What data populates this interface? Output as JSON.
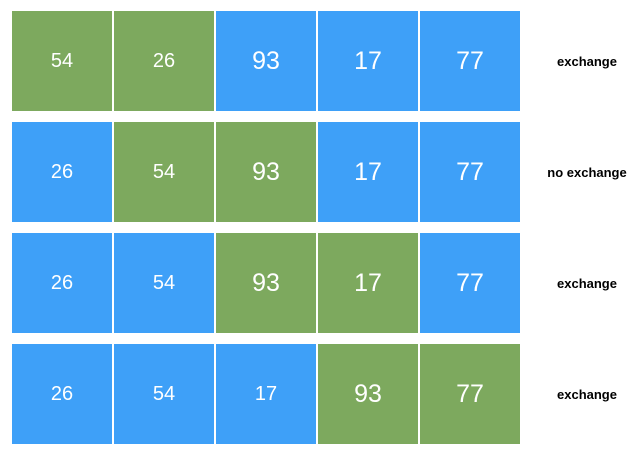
{
  "colors": {
    "compared": "#7da95e",
    "default": "#3ea0f8",
    "number_text": "#ffffff",
    "status_text": "#000000"
  },
  "rows": [
    {
      "cells": [
        {
          "value": "54",
          "state": "compared"
        },
        {
          "value": "26",
          "state": "compared"
        },
        {
          "value": "93",
          "state": "default"
        },
        {
          "value": "17",
          "state": "default"
        },
        {
          "value": "77",
          "state": "default"
        }
      ],
      "status": "exchange"
    },
    {
      "cells": [
        {
          "value": "26",
          "state": "default"
        },
        {
          "value": "54",
          "state": "compared"
        },
        {
          "value": "93",
          "state": "compared"
        },
        {
          "value": "17",
          "state": "default"
        },
        {
          "value": "77",
          "state": "default"
        }
      ],
      "status": "no exchange"
    },
    {
      "cells": [
        {
          "value": "26",
          "state": "default"
        },
        {
          "value": "54",
          "state": "default"
        },
        {
          "value": "93",
          "state": "compared"
        },
        {
          "value": "17",
          "state": "compared"
        },
        {
          "value": "77",
          "state": "default"
        }
      ],
      "status": "exchange"
    },
    {
      "cells": [
        {
          "value": "26",
          "state": "default"
        },
        {
          "value": "54",
          "state": "default"
        },
        {
          "value": "17",
          "state": "default"
        },
        {
          "value": "93",
          "state": "compared"
        },
        {
          "value": "77",
          "state": "compared"
        }
      ],
      "status": "exchange"
    }
  ]
}
